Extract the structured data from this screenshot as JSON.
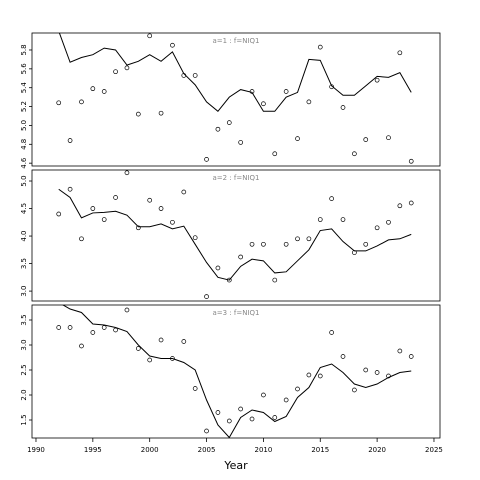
{
  "chart_data": [
    {
      "type": "line",
      "title": "a=1 : f=NIQ1",
      "x": [
        1992,
        1993,
        1994,
        1995,
        1996,
        1997,
        1998,
        1999,
        2000,
        2001,
        2002,
        2003,
        2004,
        2005,
        2006,
        2007,
        2008,
        2009,
        2010,
        2011,
        2012,
        2013,
        2014,
        2015,
        2016,
        2017,
        2018,
        2019,
        2020,
        2021,
        2022,
        2023
      ],
      "series": [
        {
          "style": "points",
          "color": "#000000",
          "values": [
            5.24,
            4.84,
            5.25,
            5.39,
            5.36,
            5.57,
            5.61,
            5.12,
            5.95,
            5.13,
            5.85,
            5.53,
            5.53,
            4.64,
            4.96,
            5.03,
            4.82,
            5.36,
            5.23,
            4.7,
            5.36,
            4.86,
            5.25,
            5.83,
            5.41,
            5.19,
            4.7,
            4.85,
            5.48,
            4.87,
            5.77,
            4.62
          ]
        },
        {
          "style": "line",
          "color": "#000000",
          "values": [
            6.0,
            5.67,
            5.72,
            5.75,
            5.82,
            5.8,
            5.64,
            5.68,
            5.75,
            5.68,
            5.78,
            5.55,
            5.43,
            5.25,
            5.15,
            5.3,
            5.38,
            5.35,
            5.15,
            5.15,
            5.3,
            5.35,
            5.7,
            5.69,
            5.42,
            5.32,
            5.32,
            5.42,
            5.52,
            5.51,
            5.56,
            5.35
          ]
        }
      ],
      "xlim": [
        1989.65,
        2025.53
      ],
      "ylim": [
        4.57,
        5.98
      ],
      "yticks": [
        4.6,
        4.8,
        {
          "value": 5.0,
          "label": "5.0"
        },
        5.2,
        5.4,
        5.6,
        5.8
      ]
    },
    {
      "type": "line",
      "title": "a=2 : f=NIQ1",
      "x": [
        1992,
        1993,
        1994,
        1995,
        1996,
        1997,
        1998,
        1999,
        2000,
        2001,
        2002,
        2003,
        2004,
        2005,
        2006,
        2007,
        2008,
        2009,
        2010,
        2011,
        2012,
        2013,
        2014,
        2015,
        2016,
        2017,
        2018,
        2019,
        2020,
        2021,
        2022,
        2023
      ],
      "series": [
        {
          "style": "points",
          "color": "#000000",
          "values": [
            4.4,
            4.85,
            3.95,
            4.5,
            4.3,
            4.7,
            5.15,
            4.15,
            4.65,
            4.5,
            4.25,
            4.8,
            3.97,
            2.9,
            3.42,
            3.2,
            3.62,
            3.85,
            3.85,
            3.2,
            3.85,
            3.95,
            3.95,
            4.3,
            4.68,
            4.3,
            3.7,
            3.85,
            4.15,
            4.25,
            4.55,
            4.6
          ]
        },
        {
          "style": "line",
          "color": "#000000",
          "values": [
            4.85,
            4.7,
            4.33,
            4.42,
            4.43,
            4.45,
            4.38,
            4.17,
            4.17,
            4.22,
            4.13,
            4.18,
            3.85,
            3.52,
            3.25,
            3.2,
            3.45,
            3.58,
            3.55,
            3.33,
            3.35,
            3.55,
            3.75,
            4.1,
            4.13,
            3.9,
            3.73,
            3.73,
            3.82,
            3.93,
            3.95,
            4.03
          ]
        }
      ],
      "xlim": [
        1989.65,
        2025.53
      ],
      "ylim": [
        2.82,
        5.2
      ],
      "yticks": [
        {
          "value": 3.0,
          "label": "3.0"
        },
        3.5,
        {
          "value": 4.0,
          "label": "4.0"
        },
        4.5,
        {
          "value": 5.0,
          "label": "5.0"
        }
      ]
    },
    {
      "type": "line",
      "title": "a=3 : f=NIQ1",
      "xlabel": "Year",
      "x": [
        1992,
        1993,
        1994,
        1995,
        1996,
        1997,
        1998,
        1999,
        2000,
        2001,
        2002,
        2003,
        2004,
        2005,
        2006,
        2007,
        2008,
        2009,
        2010,
        2011,
        2012,
        2013,
        2014,
        2015,
        2016,
        2017,
        2018,
        2019,
        2020,
        2021,
        2022,
        2023
      ],
      "series": [
        {
          "style": "points",
          "color": "#000000",
          "values": [
            3.35,
            3.35,
            2.98,
            3.25,
            3.35,
            3.3,
            3.7,
            2.93,
            2.7,
            3.1,
            2.73,
            3.07,
            2.13,
            1.28,
            1.65,
            1.48,
            1.72,
            1.52,
            2.0,
            1.55,
            1.9,
            2.12,
            2.4,
            2.38,
            3.25,
            2.77,
            2.1,
            2.5,
            2.45,
            2.38,
            2.88,
            2.77
          ]
        },
        {
          "style": "line",
          "color": "#000000",
          "values": [
            3.85,
            3.72,
            3.65,
            3.42,
            3.4,
            3.35,
            3.27,
            3.0,
            2.78,
            2.73,
            2.73,
            2.65,
            2.5,
            1.9,
            1.4,
            1.15,
            1.55,
            1.7,
            1.65,
            1.47,
            1.57,
            1.95,
            2.15,
            2.55,
            2.62,
            2.45,
            2.22,
            2.15,
            2.22,
            2.35,
            2.45,
            2.48
          ]
        }
      ],
      "xlim": [
        1989.65,
        2025.53
      ],
      "ylim": [
        1.14,
        3.8
      ],
      "yticks": [
        1.5,
        {
          "value": 2.0,
          "label": "2.0"
        },
        2.5,
        {
          "value": 3.0,
          "label": "3.0"
        },
        3.5
      ],
      "xticks": [
        1990,
        1995,
        2000,
        2005,
        2010,
        2015,
        2020,
        2025
      ]
    }
  ]
}
